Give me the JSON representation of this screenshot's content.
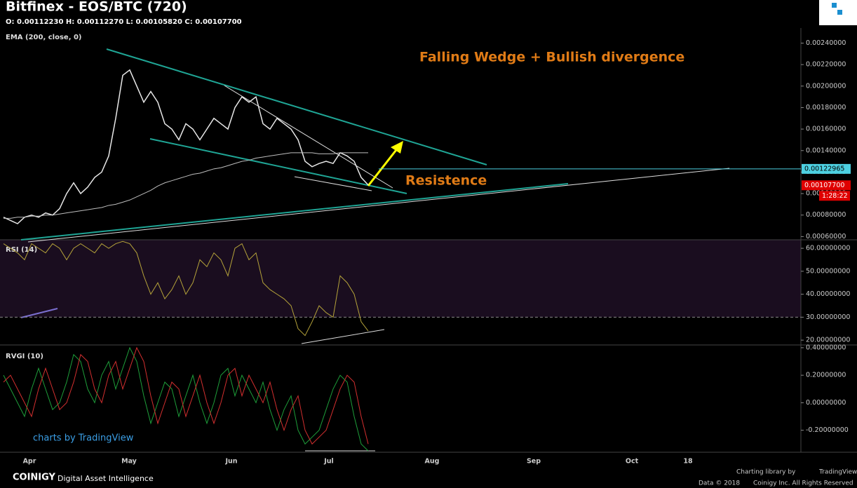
{
  "header": {
    "title": "Bitfinex - EOS/BTC (720)",
    "ohlc": "O: 0.00112230 H: 0.00112270 L: 0.00105820 C: 0.00107700"
  },
  "chart_data": [
    {
      "type": "line",
      "annotation": "Falling Wedge + Bullish divergence",
      "resistance_label": "Resistence",
      "xtick_labels": [
        "Apr",
        "May",
        "Jun",
        "Jul",
        "Aug",
        "Sep",
        "Oct",
        "18"
      ],
      "ylim": [
        0.00057,
        0.00254
      ],
      "yticks": [
        {
          "value": 0.0024,
          "label": "0.00240000"
        },
        {
          "value": 0.0022,
          "label": "0.00220000"
        },
        {
          "value": 0.002,
          "label": "0.00200000"
        },
        {
          "value": 0.0018,
          "label": "0.00180000"
        },
        {
          "value": 0.0016,
          "label": "0.00160000"
        },
        {
          "value": 0.0014,
          "label": "0.00140000"
        },
        {
          "value": 0.0012,
          "label": "0.00120000"
        },
        {
          "value": 0.001,
          "label": "0.00100000"
        },
        {
          "value": 0.0008,
          "label": "0.00080000"
        },
        {
          "value": 0.0006,
          "label": "0.00060000"
        }
      ],
      "series": [
        {
          "color": "#e8e8e8",
          "values": [
            0.00078,
            0.00075,
            0.00072,
            0.00078,
            0.0008,
            0.00078,
            0.00082,
            0.0008,
            0.00086,
            0.001,
            0.0011,
            0.001,
            0.00106,
            0.00115,
            0.0012,
            0.00135,
            0.0017,
            0.0021,
            0.00215,
            0.002,
            0.00185,
            0.00195,
            0.00185,
            0.00165,
            0.0016,
            0.0015,
            0.00165,
            0.0016,
            0.0015,
            0.0016,
            0.0017,
            0.00165,
            0.0016,
            0.0018,
            0.0019,
            0.00185,
            0.0019,
            0.00165,
            0.0016,
            0.0017,
            0.00165,
            0.0016,
            0.0015,
            0.0013,
            0.00125,
            0.00128,
            0.0013,
            0.00128,
            0.00138,
            0.00135,
            0.0013,
            0.00115,
            0.00108
          ]
        },
        {
          "name": "EMA (200, close, 0)",
          "color": "#bdbdbd",
          "values": [
            0.00077,
            0.00077,
            0.00078,
            0.00078,
            0.00079,
            0.00079,
            0.0008,
            0.0008,
            0.00081,
            0.00082,
            0.00083,
            0.00084,
            0.00085,
            0.00086,
            0.00087,
            0.00089,
            0.0009,
            0.00092,
            0.00094,
            0.00097,
            0.001,
            0.00103,
            0.00107,
            0.0011,
            0.00112,
            0.00114,
            0.00116,
            0.00118,
            0.00119,
            0.00121,
            0.00123,
            0.00124,
            0.00126,
            0.00128,
            0.0013,
            0.00131,
            0.00133,
            0.00134,
            0.00135,
            0.00136,
            0.00137,
            0.00138,
            0.00138,
            0.00138,
            0.00138,
            0.00137,
            0.00137,
            0.00137,
            0.00138,
            0.00138,
            0.00138,
            0.00138,
            0.00138
          ]
        }
      ],
      "price_labels": [
        {
          "value": 0.00122965,
          "label": "0.00122965",
          "color": "#4dd0e1"
        },
        {
          "value": 0.001077,
          "label": "0.00107700",
          "color": "#e00000"
        }
      ],
      "countdown": "1:28:22"
    },
    {
      "type": "line",
      "ylim": [
        17.9,
        63.7
      ],
      "band_low": 30,
      "yticks": [
        {
          "value": 60,
          "label": "60.00000000"
        },
        {
          "value": 50,
          "label": "50.00000000"
        },
        {
          "value": 40,
          "label": "40.00000000"
        },
        {
          "value": 30,
          "label": "30.00000000"
        },
        {
          "value": 20,
          "label": "20.00000000"
        }
      ],
      "series": [
        {
          "name": "RSI (14)",
          "color": "#b5a33a",
          "values": [
            62,
            60,
            58,
            55,
            62,
            60,
            58,
            62,
            60,
            55,
            60,
            62,
            60,
            58,
            62,
            60,
            62,
            63,
            62,
            58,
            48,
            40,
            45,
            38,
            42,
            48,
            40,
            45,
            55,
            52,
            58,
            55,
            48,
            60,
            62,
            55,
            58,
            45,
            42,
            40,
            38,
            35,
            25,
            22,
            28,
            35,
            32,
            30,
            48,
            45,
            40,
            28,
            24
          ]
        }
      ]
    },
    {
      "type": "line",
      "ylim": [
        -0.36,
        0.42
      ],
      "yticks": [
        {
          "value": 0.4,
          "label": "0.40000000"
        },
        {
          "value": 0.2,
          "label": "0.20000000"
        },
        {
          "value": 0,
          "label": "0.00000000"
        },
        {
          "value": -0.2,
          "label": "-0.20000000"
        }
      ],
      "series": [
        {
          "name": "RVGI (10)",
          "color": "#1e9e3a",
          "values": [
            0.2,
            0.1,
            0.0,
            -0.1,
            0.1,
            0.25,
            0.1,
            -0.05,
            0.0,
            0.15,
            0.35,
            0.3,
            0.1,
            0.0,
            0.2,
            0.3,
            0.1,
            0.25,
            0.4,
            0.3,
            0.05,
            -0.15,
            0.0,
            0.15,
            0.1,
            -0.1,
            0.05,
            0.2,
            0.0,
            -0.15,
            0.0,
            0.2,
            0.25,
            0.05,
            0.2,
            0.1,
            0.0,
            0.15,
            -0.05,
            -0.2,
            -0.05,
            0.05,
            -0.2,
            -0.3,
            -0.25,
            -0.2,
            -0.05,
            0.1,
            0.2,
            0.15,
            -0.1,
            -0.3,
            -0.35
          ]
        },
        {
          "color": "#d32f2f",
          "values": [
            0.15,
            0.2,
            0.1,
            0.0,
            -0.1,
            0.1,
            0.25,
            0.1,
            -0.05,
            0.0,
            0.15,
            0.35,
            0.3,
            0.1,
            0.0,
            0.2,
            0.3,
            0.1,
            0.25,
            0.4,
            0.3,
            0.05,
            -0.15,
            0.0,
            0.15,
            0.1,
            -0.1,
            0.05,
            0.2,
            0.0,
            -0.15,
            0.0,
            0.2,
            0.25,
            0.05,
            0.2,
            0.1,
            0.0,
            0.15,
            -0.05,
            -0.2,
            -0.05,
            0.05,
            -0.2,
            -0.3,
            -0.25,
            -0.2,
            -0.05,
            0.1,
            0.2,
            0.15,
            -0.1,
            -0.3
          ]
        }
      ]
    }
  ],
  "footer": {
    "watermark": "charts by TradingView",
    "brand": "COINIGY",
    "tagline": "Digital Asset Intelligence",
    "library": "Charting library by",
    "library_name": "TradingView",
    "data": "Data © 2018",
    "rights": "Coinigy Inc. All Rights Reserved"
  }
}
